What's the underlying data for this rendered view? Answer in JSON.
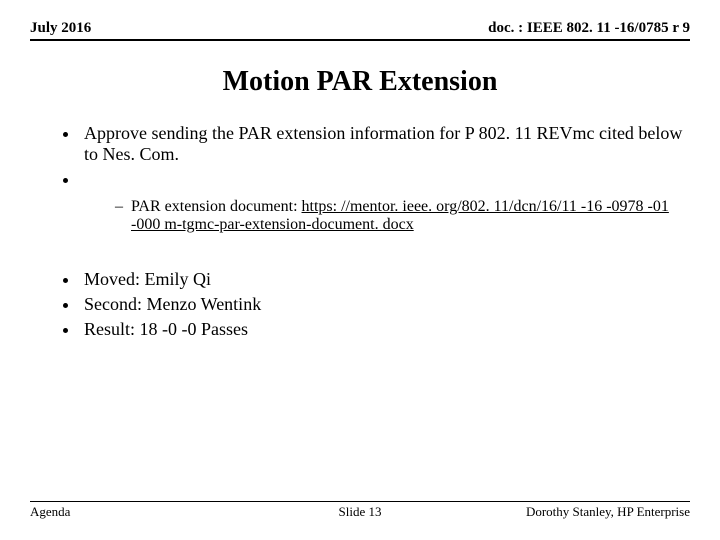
{
  "header": {
    "date": "July 2016",
    "docref": "doc. : IEEE 802. 11 -16/0785 r 9"
  },
  "title": "Motion PAR Extension",
  "main_bullets": [
    "Approve sending the PAR extension information for P 802. 11 REVmc cited below to Nes. Com.",
    ""
  ],
  "sub_bullet_label": "PAR extension document:",
  "sub_bullet_link": "https: //mentor. ieee. org/802. 11/dcn/16/11 -16 -0978 -01 -000 m-tgmc-par-extension-document. docx",
  "second_bullets": [
    "Moved: Emily Qi",
    "Second: Menzo Wentink",
    "Result: 18 -0 -0 Passes"
  ],
  "footer": {
    "left": "Agenda",
    "center": "Slide 13",
    "right": "Dorothy Stanley, HP Enterprise"
  }
}
